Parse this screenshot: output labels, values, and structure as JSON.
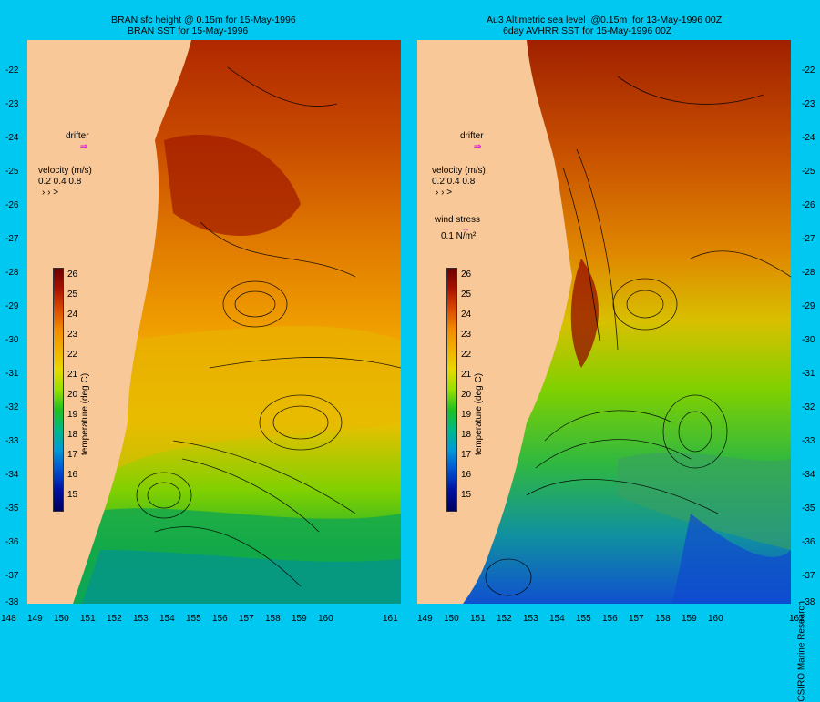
{
  "left": {
    "title_line1": "BRAN sfc height @ 0.15m for 15-May-1996",
    "title_line2": "BRAN SST for 15-May-1996",
    "drifter": "drifter",
    "velocity_label": "velocity (m/s)",
    "velocity_scale": "0.2 0.4 0.8",
    "colorbar_title": "temperature (deg C)"
  },
  "right": {
    "title_line1": "Au3 Altimetric sea level  @0.15m  for 13-May-1996 00Z",
    "title_line2": "6day AVHRR SST for 15-May-1996 00Z",
    "drifter": "drifter",
    "velocity_label": "velocity (m/s)",
    "velocity_scale": "0.2 0.4 0.8",
    "wind_label": "wind stress",
    "wind_scale": "0.1 N/m²",
    "colorbar_title": "temperature (deg C)",
    "credit": "CSIRO Marine Research"
  },
  "lat_ticks": [
    "-22",
    "-23",
    "-24",
    "-25",
    "-26",
    "-27",
    "-28",
    "-29",
    "-30",
    "-31",
    "-32",
    "-33",
    "-34",
    "-35",
    "-36",
    "-37",
    "-38"
  ],
  "lon_ticks": [
    "148",
    "149",
    "150",
    "151",
    "152",
    "153",
    "154",
    "155",
    "156",
    "157",
    "158",
    "159",
    "160",
    "161"
  ],
  "colorbar_ticks": [
    "26",
    "25",
    "24",
    "23",
    "22",
    "21",
    "20",
    "19",
    "18",
    "17",
    "16",
    "15"
  ],
  "colors": {
    "background": "#00c8f0",
    "land": "#f8c898",
    "drifter": "#e020e0"
  }
}
